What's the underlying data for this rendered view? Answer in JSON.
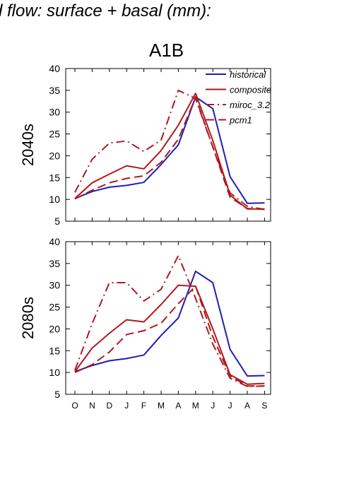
{
  "page": {
    "title": "d flow: surface + basal (mm):",
    "scenario": "A1B"
  },
  "colors": {
    "historical": "#1f1fb4",
    "projection": "#b0191e"
  },
  "chart_data": [
    {
      "type": "line",
      "period_label": "2040s",
      "ylabel": "2040s",
      "x": [
        "O",
        "N",
        "D",
        "J",
        "F",
        "M",
        "A",
        "M",
        "J",
        "J",
        "A",
        "S"
      ],
      "ylim": [
        5,
        40
      ],
      "yticks": [
        5,
        10,
        15,
        20,
        25,
        30,
        35,
        40
      ],
      "legend": {
        "placement": "top-right"
      },
      "series": [
        {
          "name": "historical",
          "style": "solid",
          "color": "#1f1fb4",
          "values": [
            10.2,
            11.8,
            12.8,
            13.2,
            13.9,
            18.0,
            22.5,
            33.5,
            30.8,
            15.2,
            9.1,
            9.2
          ]
        },
        {
          "name": "composite",
          "style": "solid",
          "color": "#b0191e",
          "values": [
            10.2,
            13.8,
            15.8,
            17.7,
            17.0,
            21.2,
            27.0,
            34.3,
            23.5,
            11.0,
            7.8,
            7.8
          ]
        },
        {
          "name": "miroc_3.2",
          "style": "dashdot",
          "color": "#b0191e",
          "values": [
            11.6,
            19.2,
            22.9,
            23.4,
            21.0,
            23.6,
            35.0,
            33.1,
            22.0,
            11.5,
            8.4,
            7.7
          ]
        },
        {
          "name": "pcm1",
          "style": "dashed",
          "color": "#b0191e",
          "values": [
            10.1,
            12.1,
            13.8,
            14.8,
            15.4,
            18.5,
            23.8,
            33.4,
            22.0,
            10.5,
            7.9,
            7.7
          ]
        }
      ]
    },
    {
      "type": "line",
      "period_label": "2080s",
      "ylabel": "2080s",
      "x": [
        "O",
        "N",
        "D",
        "J",
        "F",
        "M",
        "A",
        "M",
        "J",
        "J",
        "A",
        "S"
      ],
      "ylim": [
        5,
        40
      ],
      "yticks": [
        5,
        10,
        15,
        20,
        25,
        30,
        35,
        40
      ],
      "series": [
        {
          "name": "historical",
          "style": "solid",
          "color": "#1f1fb4",
          "values": [
            10.2,
            11.6,
            12.7,
            13.2,
            14.0,
            18.5,
            22.5,
            33.2,
            30.6,
            15.3,
            9.2,
            9.3
          ]
        },
        {
          "name": "composite",
          "style": "solid",
          "color": "#b0191e",
          "values": [
            10.2,
            15.6,
            19.0,
            22.1,
            21.6,
            25.6,
            30.0,
            29.8,
            20.0,
            9.5,
            7.3,
            7.5
          ]
        },
        {
          "name": "miroc_3.2",
          "style": "dashdot",
          "color": "#b0191e",
          "values": [
            10.5,
            21.2,
            30.6,
            30.6,
            26.4,
            29.1,
            36.8,
            27.0,
            16.5,
            8.7,
            6.8,
            6.9
          ]
        },
        {
          "name": "pcm1",
          "style": "dashed",
          "color": "#b0191e",
          "values": [
            10.0,
            11.8,
            14.7,
            18.7,
            19.6,
            21.3,
            25.8,
            29.8,
            18.2,
            9.2,
            6.9,
            6.9
          ]
        }
      ]
    }
  ],
  "xaxis": {
    "labels": [
      "O",
      "N",
      "D",
      "J",
      "F",
      "M",
      "A",
      "M",
      "J",
      "J",
      "A",
      "S"
    ]
  }
}
